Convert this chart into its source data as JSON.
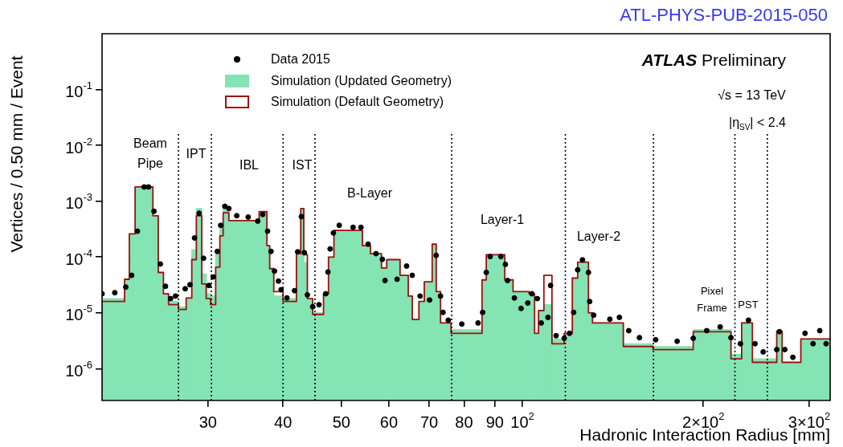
{
  "chart_data": {
    "type": "histogram",
    "title": "ATL-PHYS-PUB-2015-050",
    "xlabel": "Hadronic Interaction Radius [mm]",
    "ylabel": "Vertices / 0.50 mm / Event",
    "log": "xy",
    "legend": "top left",
    "xlim": [
      20,
      325
    ],
    "ylim": [
      2.7e-07,
      1
    ],
    "xticks": [
      {
        "value": 30,
        "label": "30"
      },
      {
        "value": 40,
        "label": "40"
      },
      {
        "value": 50,
        "label": "50"
      },
      {
        "value": 60,
        "label": "60"
      },
      {
        "value": 70,
        "label": "70"
      },
      {
        "value": 80,
        "label": "80"
      },
      {
        "value": 90,
        "label": "90"
      },
      {
        "value": 100,
        "label": "10$^{2}$"
      },
      {
        "value": 200,
        "label": "2×10$^{2}$"
      },
      {
        "value": 300,
        "label": "3×10$^{2}$"
      }
    ],
    "yticks": [
      {
        "value": 1e-06,
        "label": "10$^{-6}$"
      },
      {
        "value": 1e-05,
        "label": "10$^{-5}$"
      },
      {
        "value": 0.0001,
        "label": "10$^{-4}$"
      },
      {
        "value": 0.001,
        "label": "10$^{-3}$"
      },
      {
        "value": 0.01,
        "label": "10$^{-2}$"
      },
      {
        "value": 0.1,
        "label": "10$^{-1}$"
      }
    ],
    "ref_lines": [
      {
        "axis": "x",
        "value": 26.8,
        "line_style": "dotted"
      },
      {
        "axis": "x",
        "value": 30.4,
        "line_style": "dotted"
      },
      {
        "axis": "x",
        "value": 40.0,
        "line_style": "dotted"
      },
      {
        "axis": "x",
        "value": 45.2,
        "line_style": "dotted"
      },
      {
        "axis": "x",
        "value": 76.3,
        "line_style": "dotted"
      },
      {
        "axis": "x",
        "value": 117.9,
        "line_style": "dotted"
      },
      {
        "axis": "x",
        "value": 165.2,
        "line_style": "dotted"
      },
      {
        "axis": "x",
        "value": 225.7,
        "line_style": "dotted"
      },
      {
        "axis": "x",
        "value": 255.5,
        "line_style": "dotted"
      }
    ],
    "annotations": [
      "ATLAS Preliminary",
      "√s = 13 TeV",
      "|η$_{SV}$| < 2.4",
      "Beam\nPipe",
      "IPT",
      "IBL",
      "IST",
      "B-Layer",
      "Layer-1",
      "Layer-2",
      "Pixel\nFrame",
      "PST"
    ],
    "series": [
      {
        "name": "Simulation (Updated Geometry)",
        "type": "histogram",
        "color": "#84e4b4",
        "bins": [
          20,
          21.8,
          22.2,
          22.7,
          24.3,
          24.8,
          25.3,
          25.8,
          26.8,
          27.6,
          28.2,
          28.7,
          29.3,
          29.8,
          30.3,
          30.9,
          31.4,
          31.8,
          32.5,
          36.5,
          37.6,
          38.0,
          38.6,
          40.0,
          42.1,
          42.8,
          43.3,
          43.9,
          44.8,
          46.7,
          47.6,
          48.6,
          54.2,
          55.9,
          58.3,
          59.5,
          62.6,
          64.6,
          65.6,
          67.3,
          68.7,
          70.8,
          71.9,
          73.1,
          76.1,
          85.7,
          87.1,
          93.5,
          96.5,
          102.6,
          104.8,
          106.4,
          108.6,
          112.0,
          117.4,
          121.1,
          123.6,
          128.8,
          130.8,
          147.2,
          164.9,
          192.4,
          222.3,
          231.6,
          241.3,
          264.9,
          270.4,
          290.5,
          325
        ],
        "values": [
          1.8e-05,
          4e-05,
          0.00026,
          0.0018,
          0.00055,
          5.3e-05,
          2.2e-05,
          1.6e-05,
          1.27e-05,
          1.85e-05,
          0.000135,
          0.00074,
          5e-05,
          2.2e-05,
          2e-05,
          0.000125,
          0.00036,
          0.0008,
          0.00045,
          0.00065,
          0.00016,
          6.2e-05,
          2e-05,
          1.8e-05,
          0.000115,
          0.00074,
          8e-05,
          1.8e-05,
          1e-05,
          2.2e-05,
          0.0001,
          0.0003,
          0.00016,
          0.000115,
          6.4e-05,
          9e-05,
          4.7e-05,
          2e-05,
          7.6e-06,
          1.6e-05,
          3.6e-05,
          0.00017,
          2.4e-05,
          6.6e-06,
          5e-06,
          3.9e-05,
          0.00011,
          3.9e-05,
          2.4e-05,
          2.2e-05,
          4.3e-06,
          1.1e-05,
          1.4e-05,
          3.4e-06,
          4.3e-06,
          4.2e-05,
          8.1e-05,
          1e-05,
          6.6e-06,
          2.8e-06,
          2.5e-06,
          5e-06,
          1.8e-06,
          6.6e-06,
          1.5e-06,
          4.7e-06,
          1.3e-06,
          3.4e-06
        ]
      },
      {
        "name": "Simulation (Default Geometry)",
        "type": "histogram",
        "color": "#a01010",
        "bins": [
          20,
          21.8,
          22.2,
          22.7,
          24.3,
          24.8,
          25.3,
          25.8,
          26.8,
          27.6,
          28.2,
          28.7,
          29.3,
          29.8,
          30.3,
          30.9,
          31.4,
          31.8,
          32.5,
          36.5,
          37.6,
          38.0,
          38.6,
          40.0,
          42.1,
          42.8,
          43.3,
          43.9,
          44.8,
          46.7,
          47.6,
          48.6,
          54.2,
          55.9,
          58.3,
          59.5,
          62.6,
          64.6,
          65.6,
          67.3,
          68.7,
          70.8,
          71.9,
          73.1,
          76.1,
          85.7,
          87.1,
          93.5,
          96.5,
          102.6,
          104.8,
          106.4,
          108.6,
          112.0,
          117.4,
          121.1,
          123.6,
          128.8,
          130.8,
          147.2,
          164.9,
          192.4,
          222.3,
          231.6,
          241.3,
          264.9,
          270.4,
          290.5,
          325
        ],
        "values": [
          1.6e-05,
          4e-05,
          0.00026,
          0.0018,
          0.00055,
          5.3e-05,
          2.2e-05,
          1.4e-05,
          1.15e-05,
          1.85e-05,
          9e-05,
          0.00055,
          3.3e-05,
          1.8e-05,
          1.4e-05,
          6.6e-05,
          0.00024,
          0.00062,
          0.00045,
          0.00065,
          0.00016,
          6.2e-05,
          2.4e-05,
          1.6e-05,
          0.000115,
          0.00074,
          0.00011,
          1.8e-05,
          9.4e-06,
          2.2e-05,
          0.0001,
          0.0003,
          0.00016,
          0.000115,
          6.4e-05,
          9e-05,
          4.7e-05,
          2e-05,
          7.6e-06,
          1.6e-05,
          3.6e-05,
          0.00017,
          2.4e-05,
          6.6e-06,
          4.3e-06,
          3.9e-05,
          0.00011,
          3.9e-05,
          2.4e-05,
          2.2e-05,
          4.3e-06,
          1.1e-05,
          4.7e-05,
          2.8e-06,
          4.3e-06,
          4.2e-05,
          8.1e-05,
          1e-05,
          6.6e-06,
          2.5e-06,
          2.2e-06,
          4.6e-06,
          1.5e-06,
          6.6e-06,
          1.3e-06,
          4.7e-06,
          1.3e-06,
          3.4e-06
        ]
      },
      {
        "name": "Data 2015",
        "type": "scatter",
        "marker": "circle",
        "color": "#000000",
        "x": [
          20.0,
          21.0,
          21.9,
          22.4,
          22.9,
          23.5,
          23.9,
          24.4,
          25.0,
          25.5,
          26.0,
          26.5,
          27.5,
          28.0,
          28.5,
          29.0,
          29.5,
          30.1,
          30.6,
          31.1,
          31.5,
          32.0,
          32.5,
          33.5,
          35.0,
          36.3,
          37.0,
          37.7,
          38.2,
          38.7,
          39.3,
          39.7,
          40.6,
          41.8,
          42.3,
          42.9,
          43.4,
          43.9,
          44.8,
          45.9,
          47.1,
          47.5,
          47.9,
          48.5,
          49.6,
          52.3,
          53.9,
          55.4,
          57.1,
          58.5,
          59.1,
          61.9,
          64.2,
          65.6,
          67.6,
          70.1,
          71.9,
          73.1,
          73.8,
          75.3,
          79.3,
          84.4,
          85.9,
          87.1,
          88.4,
          92.1,
          93.7,
          94.5,
          97.0,
          99.5,
          102.1,
          103.7,
          105.9,
          107.5,
          110.3,
          111.4,
          113.8,
          117.4,
          119.8,
          121.7,
          123.6,
          125.9,
          128.8,
          129.4,
          131.4,
          139.8,
          145,
          150.3,
          156.6,
          166.6,
          180.9,
          192.4,
          202.6,
          213.3,
          222.3,
          230.5,
          237.7,
          243.8,
          251.5,
          264.9,
          267.6,
          273.2,
          281.8,
          295.2,
          304.4,
          312.3,
          320
        ],
        "values": [
          2.2e-05,
          2.3e-05,
          2.9e-05,
          4.7e-05,
          0.00029,
          0.0018,
          0.0018,
          0.00066,
          7.5e-05,
          3e-05,
          1.8e-05,
          2e-05,
          2.7e-05,
          3.2e-05,
          0.00022,
          0.00061,
          9.5e-05,
          3.1e-05,
          4.4e-05,
          0.000126,
          0.00037,
          0.00081,
          0.00074,
          0.00055,
          0.00052,
          0.00044,
          0.00058,
          0.00029,
          0.000126,
          5.6e-05,
          3.7e-05,
          2.6e-05,
          1.85e-05,
          2.5e-05,
          0.000124,
          0.00053,
          0.00012,
          2.1e-05,
          1.29e-05,
          1.4e-05,
          2.2e-05,
          5.4e-05,
          0.00014,
          0.00027,
          0.00037,
          0.00034,
          0.00034,
          0.00017,
          0.000115,
          9.1e-05,
          3.8e-05,
          4e-05,
          6.9e-05,
          4.7e-05,
          2e-05,
          1.7e-05,
          0.000107,
          2e-05,
          1.02e-05,
          7.4e-06,
          6.3e-06,
          6.6e-06,
          1.02e-05,
          5.3e-05,
          0.000102,
          0.000102,
          7.4e-05,
          3.8e-05,
          1.85e-05,
          1.2e-05,
          1.5e-05,
          2.2e-05,
          1.8e-05,
          6.6e-06,
          8.3e-06,
          3.1e-05,
          3.9e-06,
          3.5e-06,
          4.3e-06,
          1.02e-05,
          5.9e-05,
          8.9e-05,
          5.3e-05,
          1.6e-05,
          9.1e-06,
          7.7e-06,
          8.3e-06,
          4.8e-06,
          3.6e-06,
          3.3e-06,
          3.1e-06,
          3.5e-06,
          4.8e-06,
          5.6e-06,
          3.6e-06,
          2.8e-06,
          7.4e-06,
          2.8e-06,
          2e-06,
          2.2e-06,
          4.6e-06,
          2.2e-06,
          1.6e-06,
          4.3e-06,
          2.8e-06,
          4.8e-06,
          2.8e-06
        ]
      }
    ]
  }
}
